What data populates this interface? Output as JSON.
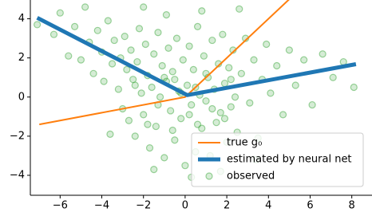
{
  "chart_data": {
    "type": "combo",
    "xlim": [
      -7.43,
      8.97
    ],
    "ylim": [
      -5.02,
      4.96
    ],
    "xticks": [
      {
        "value": -6,
        "label": "−6"
      },
      {
        "value": -4,
        "label": "−4"
      },
      {
        "value": -2,
        "label": "−2"
      },
      0,
      2,
      4,
      6,
      8
    ],
    "yticks": [
      {
        "value": -4,
        "label": "−4"
      },
      {
        "value": -2,
        "label": "−2"
      },
      0,
      2,
      4
    ],
    "legend": "lower right",
    "series": [
      {
        "name": "true g₀",
        "type": "line",
        "color": "#ff7f0e",
        "x": [
          -7,
          0,
          5
        ],
        "values": [
          -1.4,
          0,
          5
        ]
      },
      {
        "name": "estimated by neural net",
        "type": "line",
        "color": "#1f77b4",
        "x": [
          -7.1,
          0.1,
          8.2
        ],
        "values": [
          4.05,
          0.1,
          1.68
        ]
      },
      {
        "name": "observed",
        "type": "scatter",
        "color": "#2ca02c",
        "x": [
          -7.1,
          -6.3,
          -6.0,
          -5.6,
          -5.3,
          -5.0,
          -4.8,
          -4.6,
          -4.4,
          -4.2,
          -4.0,
          -3.9,
          -3.7,
          -3.5,
          -3.4,
          -3.2,
          -3.1,
          -3.0,
          -2.9,
          -2.8,
          -2.7,
          -2.6,
          -2.5,
          -2.4,
          -2.3,
          -2.2,
          -2.1,
          -2.0,
          -1.9,
          -1.8,
          -1.7,
          -1.6,
          -1.5,
          -1.4,
          -1.3,
          -1.2,
          -1.1,
          -1.0,
          -0.9,
          -0.8,
          -0.7,
          -0.6,
          -0.5,
          -0.4,
          -0.3,
          -0.2,
          -0.1,
          0.0,
          0.1,
          0.2,
          0.3,
          0.4,
          0.5,
          0.6,
          0.7,
          0.8,
          0.9,
          1.0,
          1.1,
          1.2,
          1.3,
          1.4,
          1.5,
          1.6,
          1.7,
          1.8,
          1.9,
          2.0,
          2.1,
          2.2,
          2.3,
          2.4,
          2.5,
          2.7,
          2.9,
          3.1,
          3.3,
          3.5,
          3.7,
          3.9,
          4.1,
          4.4,
          4.7,
          5.0,
          5.3,
          5.7,
          6.1,
          6.6,
          7.1,
          7.6,
          8.1,
          0.3,
          -1.5,
          1.7,
          -0.9,
          -2.0,
          0.8,
          2.6,
          -3.6,
          3.4,
          -0.5,
          0.5,
          -1.0,
          1.0,
          -0.2,
          0.2,
          -1.3,
          1.3,
          -2.4,
          2.2,
          -0.6,
          0.6,
          -1.8,
          1.9
        ],
        "values": [
          3.7,
          3.2,
          4.3,
          2.1,
          3.6,
          1.9,
          4.6,
          2.8,
          1.2,
          3.4,
          2.3,
          0.8,
          3.9,
          1.7,
          2.9,
          0.4,
          2.0,
          -0.6,
          3.1,
          1.4,
          -1.2,
          2.4,
          0.9,
          -2.0,
          1.8,
          3.5,
          0.2,
          -0.9,
          2.7,
          1.1,
          -2.6,
          0.5,
          2.2,
          -1.5,
          3.3,
          0.0,
          1.6,
          -3.1,
          0.8,
          2.5,
          -0.7,
          1.3,
          -2.2,
          3.0,
          0.3,
          -1.1,
          1.9,
          -3.5,
          0.6,
          2.6,
          -0.4,
          1.4,
          -2.8,
          3.6,
          0.1,
          -1.6,
          2.1,
          -0.2,
          1.0,
          -3.0,
          2.9,
          0.4,
          -1.3,
          1.7,
          -0.8,
          3.2,
          0.7,
          -2.3,
          1.5,
          -0.5,
          2.4,
          0.0,
          -1.8,
          1.2,
          3.0,
          -0.3,
          1.9,
          -2.1,
          0.9,
          2.7,
          0.2,
          1.6,
          -0.9,
          2.4,
          0.6,
          1.9,
          -0.4,
          2.2,
          1.0,
          1.8,
          0.5,
          -4.1,
          -3.7,
          -3.8,
          4.2,
          4.6,
          4.4,
          4.5,
          -1.9,
          -3.2,
          0.9,
          0.5,
          1.0,
          1.2,
          0.2,
          -0.9,
          -0.4,
          -0.6,
          0.6,
          0.9,
          -1.7,
          -1.4,
          -1.4,
          -1.1
        ]
      }
    ]
  }
}
